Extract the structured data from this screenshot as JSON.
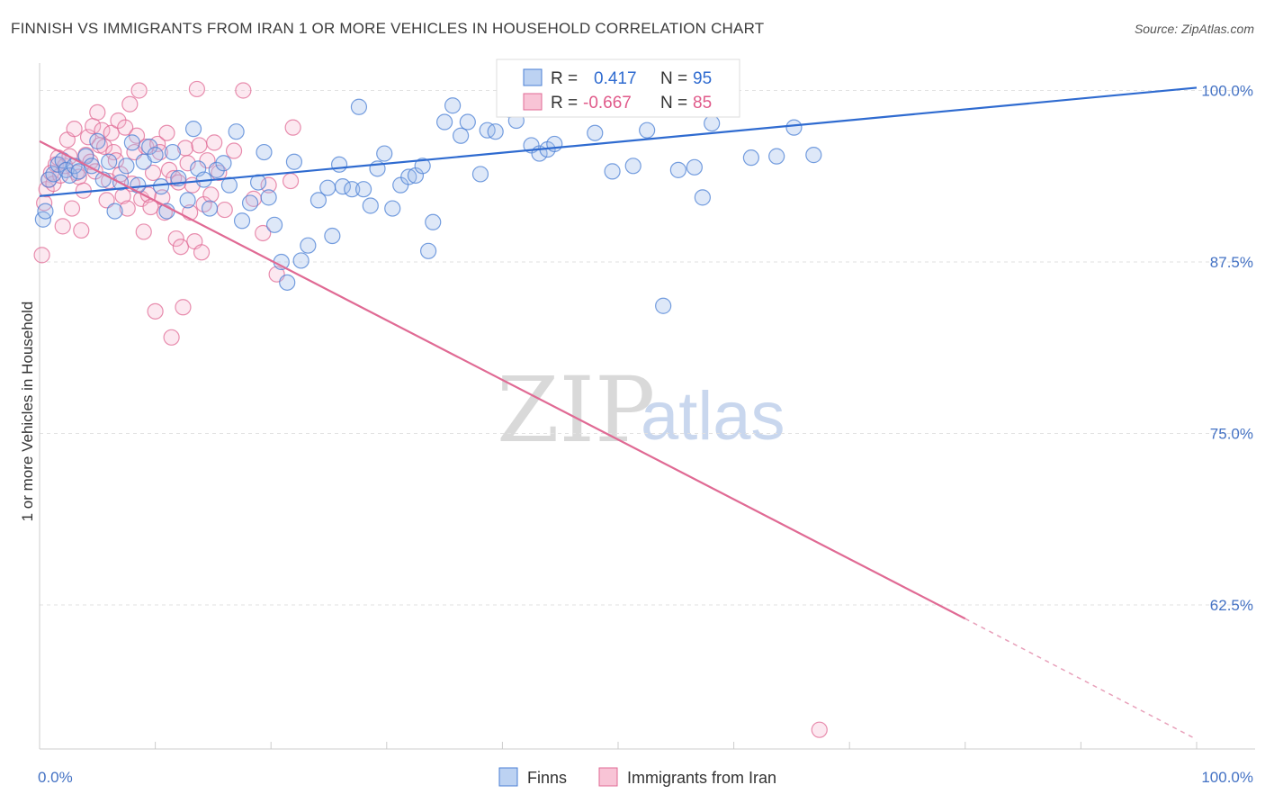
{
  "header": {
    "title": "FINNISH VS IMMIGRANTS FROM IRAN 1 OR MORE VEHICLES IN HOUSEHOLD CORRELATION CHART",
    "source": "Source: ZipAtlas.com"
  },
  "watermark": {
    "zip": "ZIP",
    "atlas": "atlas"
  },
  "legend": {
    "r_label": "R =",
    "n_label": "N =",
    "series": [
      {
        "r": "0.417",
        "n": "95"
      },
      {
        "r": "-0.667",
        "n": "85"
      }
    ]
  },
  "chart_data": {
    "type": "scatter",
    "title": "FINNISH VS IMMIGRANTS FROM IRAN 1 OR MORE VEHICLES IN HOUSEHOLD CORRELATION CHART",
    "xlabel": "",
    "ylabel": "1 or more Vehicles in Household",
    "xlim": [
      0,
      100
    ],
    "ylim": [
      52,
      102
    ],
    "x_tick_labels": [
      "0.0%",
      "100.0%"
    ],
    "y_ticks": [
      62.5,
      75.0,
      87.5,
      100.0
    ],
    "y_tick_labels": [
      "62.5%",
      "75.0%",
      "87.5%",
      "100.0%"
    ],
    "grid": true,
    "legend_placement": "top-center",
    "colors": {
      "blue": "#4a7fd4",
      "pink": "#e06a94"
    },
    "series": [
      {
        "name": "Finns",
        "color": "#4a7fd4",
        "r": 0.417,
        "n": 95,
        "trend": {
          "x": [
            0,
            100
          ],
          "y": [
            92.3,
            100.2
          ]
        },
        "points": [
          [
            0.3,
            90.6
          ],
          [
            0.5,
            91.2
          ],
          [
            0.8,
            93.5
          ],
          [
            1.2,
            93.9
          ],
          [
            1.6,
            94.6
          ],
          [
            2.0,
            94.9
          ],
          [
            2.3,
            94.2
          ],
          [
            2.6,
            93.8
          ],
          [
            3.0,
            94.5
          ],
          [
            3.4,
            94.1
          ],
          [
            4.0,
            95.2
          ],
          [
            4.5,
            94.5
          ],
          [
            5.0,
            96.3
          ],
          [
            5.5,
            93.5
          ],
          [
            6.0,
            94.8
          ],
          [
            6.5,
            91.2
          ],
          [
            7.0,
            93.3
          ],
          [
            7.5,
            94.5
          ],
          [
            8.0,
            96.2
          ],
          [
            8.5,
            93.1
          ],
          [
            9.0,
            94.8
          ],
          [
            9.5,
            95.9
          ],
          [
            10.0,
            95.3
          ],
          [
            10.5,
            93.0
          ],
          [
            11.0,
            91.2
          ],
          [
            11.5,
            95.5
          ],
          [
            12.0,
            93.6
          ],
          [
            12.8,
            92.0
          ],
          [
            13.3,
            97.2
          ],
          [
            13.7,
            94.3
          ],
          [
            14.2,
            93.5
          ],
          [
            14.7,
            91.4
          ],
          [
            15.3,
            94.2
          ],
          [
            15.9,
            94.7
          ],
          [
            16.4,
            93.1
          ],
          [
            17.0,
            97.0
          ],
          [
            17.5,
            90.5
          ],
          [
            18.2,
            91.8
          ],
          [
            18.9,
            93.3
          ],
          [
            19.4,
            95.5
          ],
          [
            19.8,
            92.2
          ],
          [
            20.3,
            90.2
          ],
          [
            20.9,
            87.5
          ],
          [
            21.4,
            86.0
          ],
          [
            22.0,
            94.8
          ],
          [
            22.6,
            87.6
          ],
          [
            23.2,
            88.7
          ],
          [
            24.1,
            92.0
          ],
          [
            24.9,
            92.9
          ],
          [
            25.3,
            89.4
          ],
          [
            25.9,
            94.6
          ],
          [
            26.2,
            93.0
          ],
          [
            27.0,
            92.8
          ],
          [
            27.6,
            98.8
          ],
          [
            28.0,
            92.8
          ],
          [
            28.6,
            91.6
          ],
          [
            29.2,
            94.3
          ],
          [
            29.8,
            95.4
          ],
          [
            30.5,
            91.4
          ],
          [
            31.2,
            93.1
          ],
          [
            31.9,
            93.7
          ],
          [
            32.5,
            93.8
          ],
          [
            33.1,
            94.5
          ],
          [
            33.6,
            88.3
          ],
          [
            34.0,
            90.4
          ],
          [
            35.0,
            97.7
          ],
          [
            35.7,
            98.9
          ],
          [
            36.4,
            96.7
          ],
          [
            37.0,
            97.7
          ],
          [
            38.1,
            93.9
          ],
          [
            38.7,
            97.1
          ],
          [
            39.4,
            97.0
          ],
          [
            40.2,
            99.3
          ],
          [
            40.6,
            98.6
          ],
          [
            41.2,
            97.8
          ],
          [
            42.5,
            96.0
          ],
          [
            43.2,
            95.4
          ],
          [
            43.9,
            95.7
          ],
          [
            44.5,
            96.1
          ],
          [
            45.6,
            99.1
          ],
          [
            47.1,
            98.7
          ],
          [
            48.0,
            96.9
          ],
          [
            49.5,
            94.1
          ],
          [
            50.7,
            99.0
          ],
          [
            51.3,
            94.5
          ],
          [
            52.5,
            97.1
          ],
          [
            53.9,
            84.3
          ],
          [
            55.2,
            94.2
          ],
          [
            56.6,
            94.4
          ],
          [
            57.3,
            92.2
          ],
          [
            58.1,
            97.6
          ],
          [
            61.5,
            95.1
          ],
          [
            63.7,
            95.2
          ],
          [
            65.2,
            97.3
          ],
          [
            66.9,
            95.3
          ]
        ]
      },
      {
        "name": "Immigrants from Iran",
        "color": "#e06a94",
        "r": -0.667,
        "n": 85,
        "trend": {
          "x": [
            0,
            80
          ],
          "y": [
            96.3,
            61.5
          ]
        },
        "trend_dashed": {
          "x": [
            80,
            100
          ],
          "y": [
            61.5,
            52.7
          ]
        },
        "points": [
          [
            0.2,
            88.0
          ],
          [
            0.4,
            91.8
          ],
          [
            0.6,
            92.8
          ],
          [
            0.8,
            93.5
          ],
          [
            1.0,
            94.0
          ],
          [
            1.2,
            93.2
          ],
          [
            1.4,
            94.6
          ],
          [
            1.6,
            95.1
          ],
          [
            1.8,
            93.8
          ],
          [
            2.0,
            90.1
          ],
          [
            2.2,
            94.5
          ],
          [
            2.4,
            96.4
          ],
          [
            2.6,
            95.2
          ],
          [
            2.8,
            91.4
          ],
          [
            3.0,
            97.2
          ],
          [
            3.2,
            94.0
          ],
          [
            3.4,
            93.7
          ],
          [
            3.6,
            89.8
          ],
          [
            3.8,
            92.7
          ],
          [
            4.0,
            95.3
          ],
          [
            4.2,
            96.6
          ],
          [
            4.4,
            94.8
          ],
          [
            4.6,
            97.4
          ],
          [
            4.8,
            94.1
          ],
          [
            5.0,
            98.4
          ],
          [
            5.2,
            96.0
          ],
          [
            5.4,
            97.1
          ],
          [
            5.6,
            95.9
          ],
          [
            5.8,
            92.0
          ],
          [
            6.0,
            93.4
          ],
          [
            6.2,
            96.9
          ],
          [
            6.4,
            95.5
          ],
          [
            6.6,
            94.9
          ],
          [
            6.8,
            97.8
          ],
          [
            7.0,
            93.9
          ],
          [
            7.2,
            92.3
          ],
          [
            7.4,
            97.3
          ],
          [
            7.6,
            91.4
          ],
          [
            7.8,
            99.0
          ],
          [
            8.0,
            93.2
          ],
          [
            8.2,
            95.5
          ],
          [
            8.4,
            96.7
          ],
          [
            8.6,
            100.0
          ],
          [
            8.8,
            92.1
          ],
          [
            9.0,
            89.7
          ],
          [
            9.2,
            95.9
          ],
          [
            9.4,
            92.4
          ],
          [
            9.6,
            91.5
          ],
          [
            9.8,
            94.0
          ],
          [
            10.0,
            83.9
          ],
          [
            10.2,
            96.1
          ],
          [
            10.4,
            95.5
          ],
          [
            10.6,
            92.2
          ],
          [
            10.8,
            91.1
          ],
          [
            11.0,
            96.9
          ],
          [
            11.2,
            94.2
          ],
          [
            11.4,
            82.0
          ],
          [
            11.6,
            93.6
          ],
          [
            11.8,
            89.2
          ],
          [
            12.0,
            93.3
          ],
          [
            12.2,
            88.6
          ],
          [
            12.4,
            84.2
          ],
          [
            12.6,
            95.8
          ],
          [
            12.8,
            94.7
          ],
          [
            13.0,
            91.1
          ],
          [
            13.2,
            93.1
          ],
          [
            13.4,
            89.0
          ],
          [
            13.6,
            100.1
          ],
          [
            13.8,
            96.0
          ],
          [
            14.0,
            88.2
          ],
          [
            14.2,
            91.7
          ],
          [
            14.5,
            94.9
          ],
          [
            14.8,
            92.4
          ],
          [
            15.1,
            96.2
          ],
          [
            15.5,
            94.0
          ],
          [
            16.0,
            91.3
          ],
          [
            16.8,
            95.6
          ],
          [
            17.6,
            100.0
          ],
          [
            18.5,
            92.1
          ],
          [
            19.3,
            89.6
          ],
          [
            19.8,
            93.1
          ],
          [
            20.5,
            86.6
          ],
          [
            21.7,
            93.4
          ],
          [
            21.9,
            97.3
          ],
          [
            67.4,
            53.4
          ]
        ]
      }
    ]
  },
  "bottom_legend": {
    "items": [
      "Finns",
      "Immigrants from Iran"
    ]
  }
}
